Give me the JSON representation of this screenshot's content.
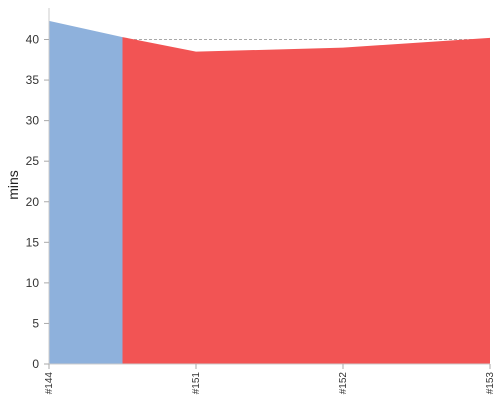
{
  "chart_data": {
    "type": "area",
    "ylabel": "mins",
    "ylim": [
      0,
      44
    ],
    "y_ticks": [
      0,
      5,
      10,
      15,
      20,
      25,
      30,
      35,
      40
    ],
    "grid": true,
    "categories": [
      "#144",
      "#151",
      "#152",
      "#153"
    ],
    "x": [
      0,
      1,
      2,
      3
    ],
    "series": [
      {
        "color": "#8eb1dc",
        "points": [
          [
            0,
            42.3
          ],
          [
            0.5,
            40.3
          ]
        ]
      },
      {
        "color": "#f25454",
        "points": [
          [
            0.5,
            40.3
          ],
          [
            1,
            38.5
          ],
          [
            2,
            39.0
          ],
          [
            3,
            40.2
          ]
        ]
      }
    ]
  }
}
